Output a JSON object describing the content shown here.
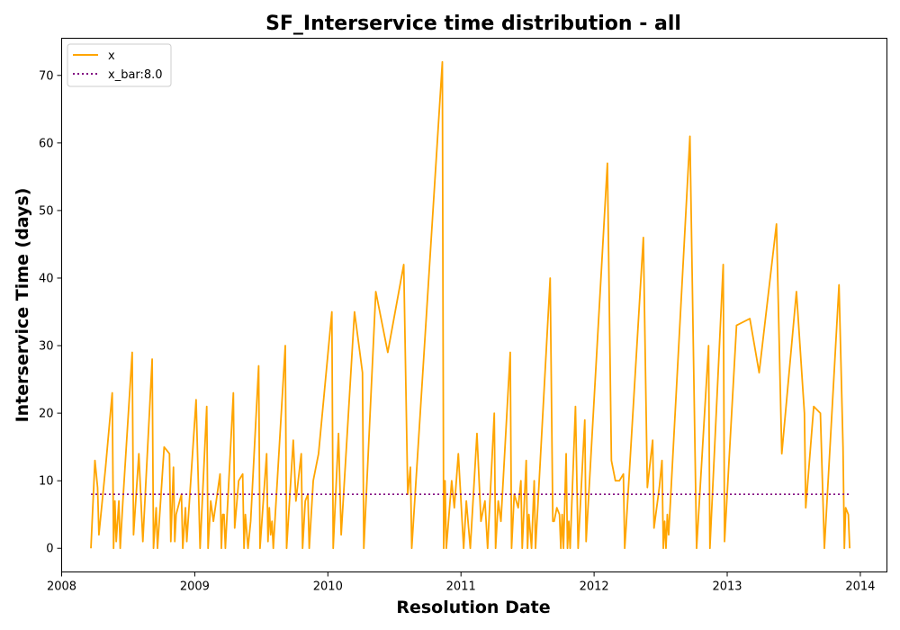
{
  "colors": {
    "x_line": "#ffa500",
    "xbar_line": "#800080",
    "axes": "#000000",
    "background": "#ffffff"
  },
  "chart_data": {
    "type": "line",
    "title": "SF_Interservice time distribution - all",
    "xlabel": "Resolution Date",
    "ylabel": "Interservice Time (days)",
    "xlim": [
      2008.0,
      2014.2
    ],
    "ylim": [
      -3.5,
      75.5
    ],
    "x_ticks": [
      {
        "value": 2008,
        "label": "2008"
      },
      {
        "value": 2009,
        "label": "2009"
      },
      {
        "value": 2010,
        "label": "2010"
      },
      {
        "value": 2011,
        "label": "2011"
      },
      {
        "value": 2012,
        "label": "2012"
      },
      {
        "value": 2013,
        "label": "2013"
      },
      {
        "value": 2014,
        "label": "2014"
      }
    ],
    "y_ticks": [
      {
        "value": 0,
        "label": "0"
      },
      {
        "value": 10,
        "label": "10"
      },
      {
        "value": 20,
        "label": "20"
      },
      {
        "value": 30,
        "label": "30"
      },
      {
        "value": 40,
        "label": "40"
      },
      {
        "value": 50,
        "label": "50"
      },
      {
        "value": 60,
        "label": "60"
      },
      {
        "value": 70,
        "label": "70"
      }
    ],
    "legend": {
      "position": "upper-left",
      "entries": [
        {
          "label": "x",
          "style": "solid",
          "series": "x"
        },
        {
          "label": "x_bar:8.0",
          "style": "dotted",
          "series": "x_bar"
        }
      ]
    },
    "series": [
      {
        "name": "x",
        "style": "solid",
        "points": [
          [
            2008.22,
            0
          ],
          [
            2008.25,
            13
          ],
          [
            2008.27,
            9
          ],
          [
            2008.28,
            2
          ],
          [
            2008.33,
            12
          ],
          [
            2008.38,
            23
          ],
          [
            2008.39,
            0
          ],
          [
            2008.4,
            7
          ],
          [
            2008.41,
            1
          ],
          [
            2008.43,
            7
          ],
          [
            2008.44,
            0
          ],
          [
            2008.46,
            7
          ],
          [
            2008.53,
            29
          ],
          [
            2008.54,
            2
          ],
          [
            2008.58,
            14
          ],
          [
            2008.61,
            1
          ],
          [
            2008.68,
            28
          ],
          [
            2008.69,
            0
          ],
          [
            2008.71,
            6
          ],
          [
            2008.72,
            0
          ],
          [
            2008.77,
            15
          ],
          [
            2008.81,
            14
          ],
          [
            2008.82,
            1
          ],
          [
            2008.84,
            12
          ],
          [
            2008.85,
            1
          ],
          [
            2008.86,
            5
          ],
          [
            2008.9,
            8
          ],
          [
            2008.91,
            0
          ],
          [
            2008.93,
            6
          ],
          [
            2008.94,
            1
          ],
          [
            2009.01,
            22
          ],
          [
            2009.04,
            0
          ],
          [
            2009.09,
            21
          ],
          [
            2009.1,
            0
          ],
          [
            2009.12,
            7
          ],
          [
            2009.14,
            4
          ],
          [
            2009.19,
            11
          ],
          [
            2009.2,
            0
          ],
          [
            2009.21,
            5
          ],
          [
            2009.22,
            5
          ],
          [
            2009.23,
            0
          ],
          [
            2009.29,
            23
          ],
          [
            2009.3,
            3
          ],
          [
            2009.33,
            10
          ],
          [
            2009.36,
            11
          ],
          [
            2009.37,
            0
          ],
          [
            2009.38,
            5
          ],
          [
            2009.4,
            0
          ],
          [
            2009.42,
            4
          ],
          [
            2009.48,
            27
          ],
          [
            2009.49,
            0
          ],
          [
            2009.54,
            14
          ],
          [
            2009.55,
            1
          ],
          [
            2009.56,
            6
          ],
          [
            2009.57,
            2
          ],
          [
            2009.58,
            4
          ],
          [
            2009.59,
            0
          ],
          [
            2009.68,
            30
          ],
          [
            2009.69,
            0
          ],
          [
            2009.74,
            16
          ],
          [
            2009.76,
            7
          ],
          [
            2009.8,
            14
          ],
          [
            2009.81,
            0
          ],
          [
            2009.83,
            7
          ],
          [
            2009.85,
            8
          ],
          [
            2009.86,
            0
          ],
          [
            2009.89,
            10
          ],
          [
            2009.93,
            14
          ],
          [
            2010.03,
            35
          ],
          [
            2010.04,
            0
          ],
          [
            2010.08,
            17
          ],
          [
            2010.1,
            2
          ],
          [
            2010.2,
            35
          ],
          [
            2010.26,
            26
          ],
          [
            2010.27,
            0
          ],
          [
            2010.36,
            38
          ],
          [
            2010.45,
            29
          ],
          [
            2010.57,
            42
          ],
          [
            2010.6,
            8
          ],
          [
            2010.62,
            12
          ],
          [
            2010.63,
            0
          ],
          [
            2010.86,
            72
          ],
          [
            2010.87,
            0
          ],
          [
            2010.88,
            10
          ],
          [
            2010.89,
            0
          ],
          [
            2010.93,
            10
          ],
          [
            2010.95,
            6
          ],
          [
            2010.98,
            14
          ],
          [
            2011.02,
            0
          ],
          [
            2011.04,
            7
          ],
          [
            2011.07,
            0
          ],
          [
            2011.12,
            17
          ],
          [
            2011.15,
            4
          ],
          [
            2011.18,
            7
          ],
          [
            2011.2,
            0
          ],
          [
            2011.25,
            20
          ],
          [
            2011.26,
            0
          ],
          [
            2011.28,
            7
          ],
          [
            2011.3,
            4
          ],
          [
            2011.37,
            29
          ],
          [
            2011.38,
            0
          ],
          [
            2011.4,
            8
          ],
          [
            2011.43,
            6
          ],
          [
            2011.45,
            10
          ],
          [
            2011.46,
            0
          ],
          [
            2011.49,
            13
          ],
          [
            2011.5,
            0
          ],
          [
            2011.51,
            5
          ],
          [
            2011.53,
            0
          ],
          [
            2011.55,
            10
          ],
          [
            2011.56,
            0
          ],
          [
            2011.67,
            40
          ],
          [
            2011.69,
            4
          ],
          [
            2011.7,
            4
          ],
          [
            2011.72,
            6
          ],
          [
            2011.74,
            5
          ],
          [
            2011.75,
            0
          ],
          [
            2011.76,
            5
          ],
          [
            2011.77,
            0
          ],
          [
            2011.79,
            14
          ],
          [
            2011.8,
            0
          ],
          [
            2011.81,
            4
          ],
          [
            2011.82,
            0
          ],
          [
            2011.86,
            21
          ],
          [
            2011.88,
            0
          ],
          [
            2011.93,
            19
          ],
          [
            2011.94,
            1
          ],
          [
            2012.1,
            57
          ],
          [
            2012.13,
            13
          ],
          [
            2012.16,
            10
          ],
          [
            2012.19,
            10
          ],
          [
            2012.22,
            11
          ],
          [
            2012.23,
            0
          ],
          [
            2012.24,
            3
          ],
          [
            2012.37,
            46
          ],
          [
            2012.4,
            9
          ],
          [
            2012.44,
            16
          ],
          [
            2012.45,
            3
          ],
          [
            2012.49,
            9
          ],
          [
            2012.51,
            13
          ],
          [
            2012.52,
            0
          ],
          [
            2012.53,
            4
          ],
          [
            2012.54,
            0
          ],
          [
            2012.55,
            5
          ],
          [
            2012.56,
            2
          ],
          [
            2012.72,
            61
          ],
          [
            2012.77,
            0
          ],
          [
            2012.86,
            30
          ],
          [
            2012.87,
            0
          ],
          [
            2012.97,
            42
          ],
          [
            2012.98,
            1
          ],
          [
            2013.07,
            33
          ],
          [
            2013.17,
            34
          ],
          [
            2013.24,
            26
          ],
          [
            2013.37,
            48
          ],
          [
            2013.41,
            14
          ],
          [
            2013.52,
            38
          ],
          [
            2013.58,
            20
          ],
          [
            2013.59,
            6
          ],
          [
            2013.65,
            21
          ],
          [
            2013.7,
            20
          ],
          [
            2013.73,
            0
          ],
          [
            2013.84,
            39
          ],
          [
            2013.87,
            15
          ],
          [
            2013.88,
            0
          ],
          [
            2013.89,
            6
          ],
          [
            2013.91,
            5
          ],
          [
            2013.92,
            0
          ]
        ]
      },
      {
        "name": "x_bar",
        "style": "dotted",
        "points": [
          [
            2008.22,
            8.0
          ],
          [
            2013.92,
            8.0
          ]
        ]
      }
    ]
  }
}
